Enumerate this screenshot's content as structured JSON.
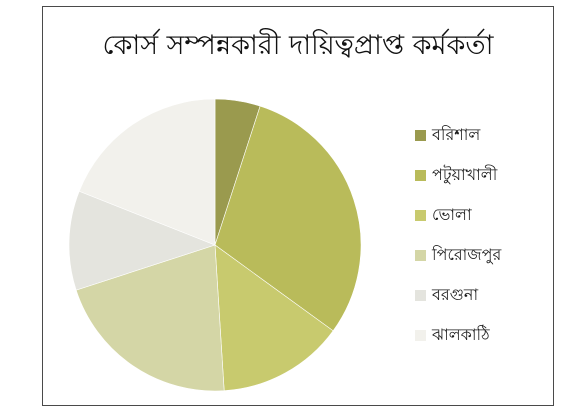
{
  "chart_data": {
    "type": "pie",
    "title": "কোর্স সম্পন্নকারী দায়িত্বপ্রাপ্ত কর্মকর্তা",
    "legend_position": "right",
    "categories": [
      "বরিশাল",
      "পটুয়াখালী",
      "ভোলা",
      "পিরোজপুর",
      "বরগুনা",
      "ঝালকাঠি"
    ],
    "values": [
      5,
      30,
      14,
      21,
      11,
      19
    ],
    "colors": [
      "#9a9a4e",
      "#b9bb5a",
      "#c8ca6e",
      "#d4d6a6",
      "#e4e4de",
      "#f2f1ec"
    ]
  }
}
